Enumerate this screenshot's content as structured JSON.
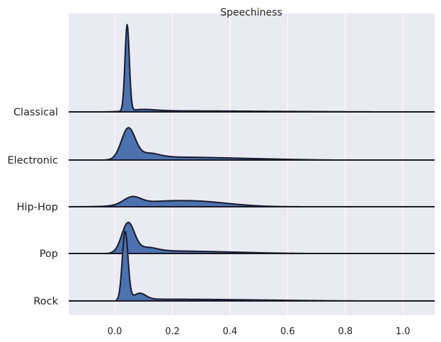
{
  "chart_data": {
    "type": "area",
    "subtype": "ridgeline",
    "title": "Speechiness",
    "xlabel": "",
    "ylabel": "",
    "xlim": [
      -0.16,
      1.11
    ],
    "xticks": [
      0.0,
      0.2,
      0.4,
      0.6,
      0.8,
      1.0
    ],
    "xtick_labels": [
      "0.0",
      "0.2",
      "0.4",
      "0.6",
      "0.8",
      "1.0"
    ],
    "grid": true,
    "legend": "none",
    "colors": {
      "fill": "#4c72b0",
      "line": "#1a1a2a",
      "background": "#eaeaf2",
      "grid": "#ffffff"
    },
    "categories": [
      "Classical",
      "Electronic",
      "Hip-Hop",
      "Pop",
      "Rock"
    ],
    "series": [
      {
        "category": "Classical",
        "components": [
          {
            "mu": 0.043,
            "sigma": 0.0075,
            "amp": 1.0
          },
          {
            "mu": 0.09,
            "sigma": 0.05,
            "amp": 0.018
          }
        ],
        "tail": {
          "start": 0.07,
          "end": 1.0,
          "level": 0.012
        }
      },
      {
        "category": "Electronic",
        "components": [
          {
            "mu": 0.047,
            "sigma": 0.024,
            "amp": 0.36
          },
          {
            "mu": 0.11,
            "sigma": 0.04,
            "amp": 0.05
          }
        ],
        "tail": {
          "start": 0.1,
          "end": 0.8,
          "level": 0.035
        }
      },
      {
        "category": "Hip-Hop",
        "components": [
          {
            "mu": 0.06,
            "sigma": 0.03,
            "amp": 0.085
          },
          {
            "mu": 0.27,
            "sigma": 0.12,
            "amp": 0.065
          },
          {
            "mu": 0.12,
            "sigma": 0.08,
            "amp": 0.025
          }
        ],
        "tail": null
      },
      {
        "category": "Pop",
        "components": [
          {
            "mu": 0.046,
            "sigma": 0.022,
            "amp": 0.34
          },
          {
            "mu": 0.1,
            "sigma": 0.04,
            "amp": 0.05
          }
        ],
        "tail": {
          "start": 0.1,
          "end": 0.7,
          "level": 0.03
        }
      },
      {
        "category": "Rock",
        "components": [
          {
            "mu": 0.036,
            "sigma": 0.01,
            "amp": 0.8
          },
          {
            "mu": 0.085,
            "sigma": 0.022,
            "amp": 0.085
          }
        ],
        "tail": {
          "start": 0.1,
          "end": 0.9,
          "level": 0.02
        }
      }
    ]
  }
}
